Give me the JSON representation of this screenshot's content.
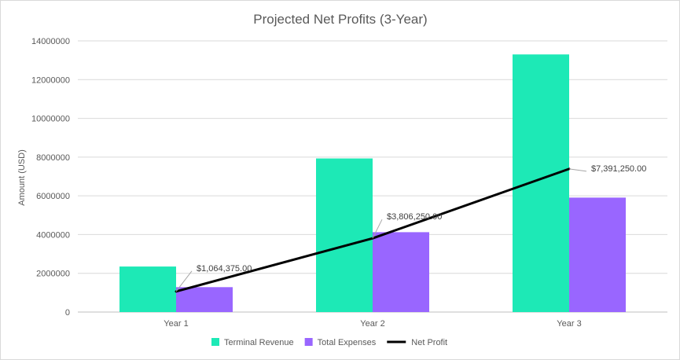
{
  "chart_data": {
    "type": "bar",
    "title": "Projected Net Profits (3-Year)",
    "xlabel": "",
    "ylabel": "Amount (USD)",
    "ylim": [
      0,
      14000000
    ],
    "yticks": [
      0,
      2000000,
      4000000,
      6000000,
      8000000,
      10000000,
      12000000,
      14000000
    ],
    "ytick_labels": [
      "0",
      "2000000",
      "4000000",
      "6000000",
      "8000000",
      "10000000",
      "12000000",
      "14000000"
    ],
    "grid": true,
    "legend_position": "bottom",
    "categories": [
      "Year 1",
      "Year 2",
      "Year 3"
    ],
    "series": [
      {
        "name": "Terminal Revenue",
        "kind": "bar",
        "color": "#1de9b6",
        "values": [
          2350000,
          7930000,
          13300000
        ]
      },
      {
        "name": "Total Expenses",
        "kind": "bar",
        "color": "#9966ff",
        "values": [
          1285625,
          4123750,
          5908750
        ]
      },
      {
        "name": "Net Profit",
        "kind": "line",
        "color": "#000000",
        "values": [
          1064375,
          3806250,
          7391250
        ],
        "labels": [
          "$1,064,375.00",
          "$3,806,250.00",
          "$7,391,250.00"
        ]
      }
    ]
  }
}
